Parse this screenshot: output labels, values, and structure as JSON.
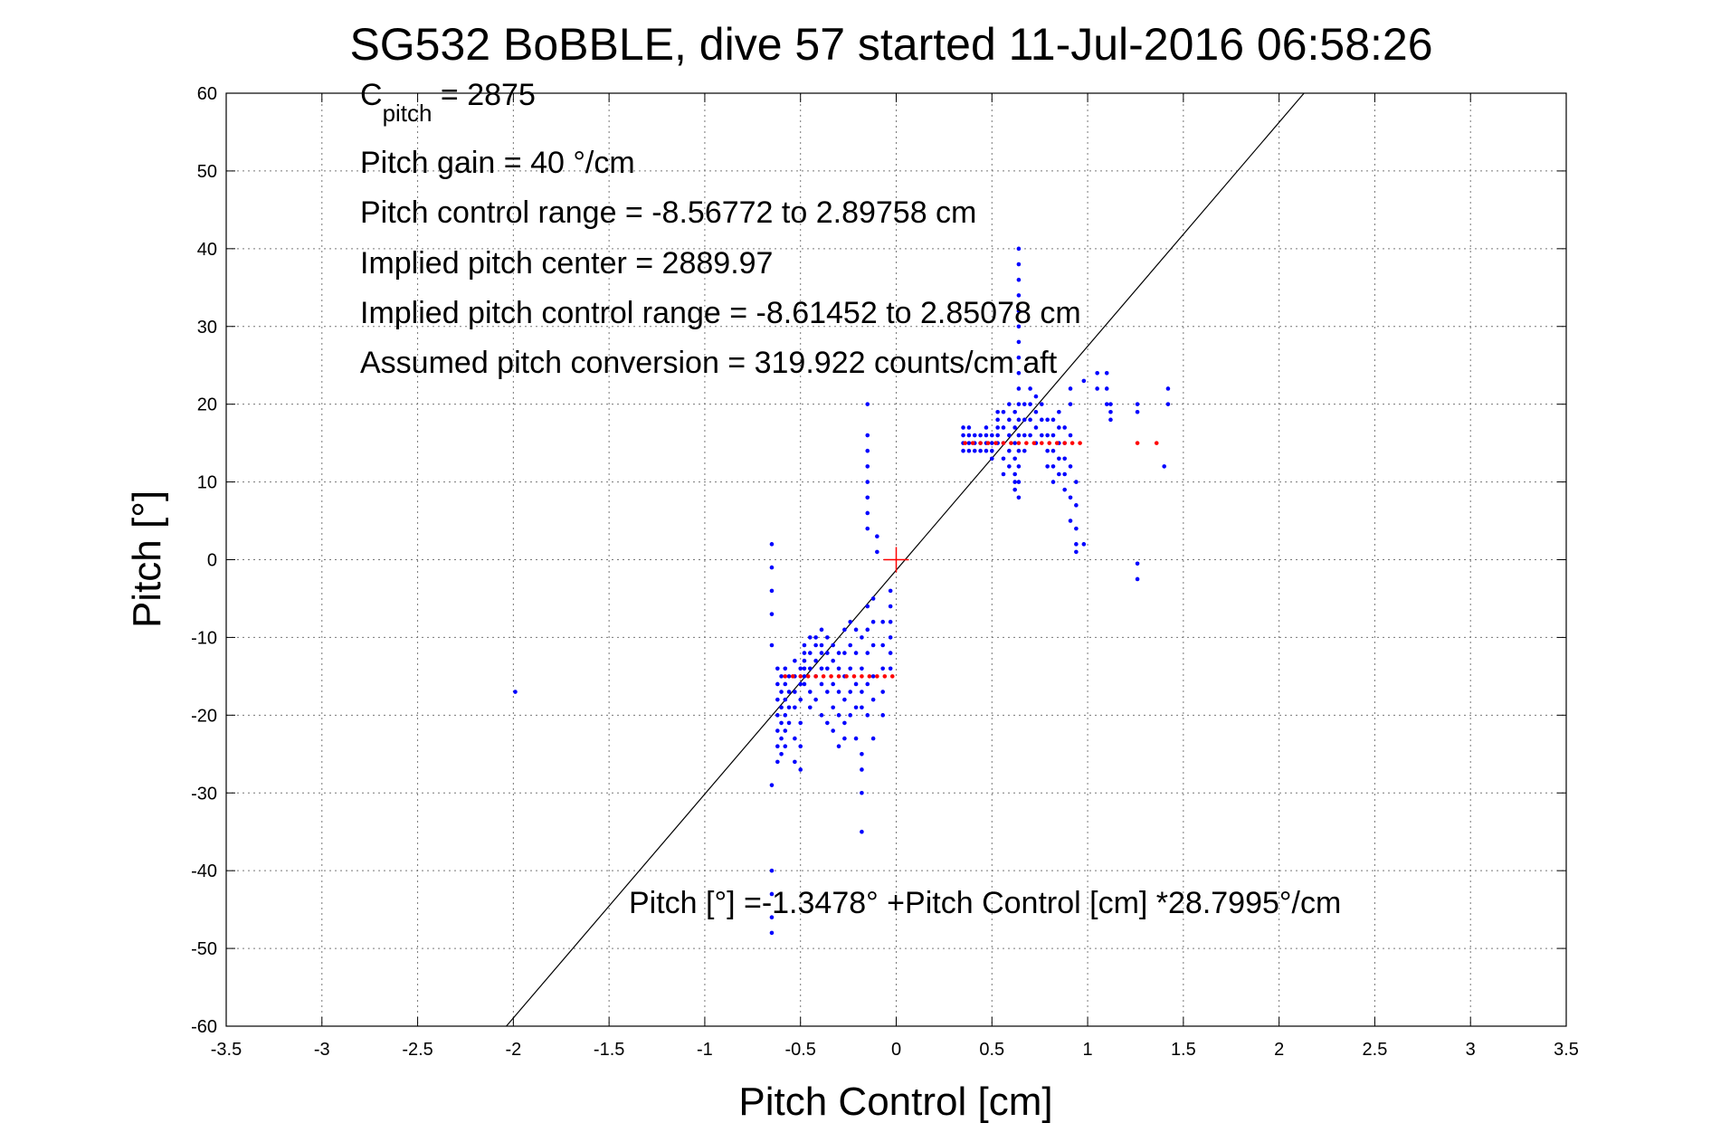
{
  "chart_data": {
    "type": "scatter",
    "title": "SG532 BoBBLE, dive 57 started 11-Jul-2016 06:58:26",
    "xlabel": "Pitch Control [cm]",
    "ylabel": "Pitch [°]",
    "xlim": [
      -3.5,
      3.5
    ],
    "ylim": [
      -60,
      60
    ],
    "xticks": [
      -3.5,
      -3,
      -2.5,
      -2,
      -1.5,
      -1,
      -0.5,
      0,
      0.5,
      1,
      1.5,
      2,
      2.5,
      3,
      3.5
    ],
    "xtick_labels": [
      "-3.5",
      "-3",
      "-2.5",
      "-2",
      "-1.5",
      "-1",
      "-0.5",
      "0",
      "0.5",
      "1",
      "1.5",
      "2",
      "2.5",
      "3",
      "3.5"
    ],
    "yticks": [
      -60,
      -50,
      -40,
      -30,
      -20,
      -10,
      0,
      10,
      20,
      30,
      40,
      50,
      60
    ],
    "ytick_labels": [
      "-60",
      "-50",
      "-40",
      "-30",
      "-20",
      "-10",
      "0",
      "10",
      "20",
      "30",
      "40",
      "50",
      "60"
    ],
    "grid": true,
    "colors": {
      "observed": "#0000ff",
      "target": "#ff0000",
      "fit": "#000000",
      "center": "#ff0000"
    },
    "fit_line": {
      "intercept": -1.3478,
      "slope": 28.7995
    },
    "center_marker": {
      "x": 0,
      "y": 0
    },
    "annotations": {
      "c_pitch_main": "C",
      "c_pitch_sub": "pitch",
      "c_pitch_value": " = 2875",
      "lines": [
        "Pitch gain = 40 °/cm",
        "Pitch control range = -8.56772 to 2.89758 cm",
        "Implied pitch center = 2889.97",
        "Implied pitch control range = -8.61452 to 2.85078 cm",
        "Assumed pitch conversion = 319.922 counts/cm aft"
      ],
      "fit_equation": "Pitch [°] =-1.3478° +Pitch Control [cm] *28.7995°/cm"
    },
    "series": [
      {
        "points": [
          [
            -1.99,
            -17
          ],
          [
            -0.65,
            2
          ],
          [
            -0.65,
            -1
          ],
          [
            -0.65,
            -4
          ],
          [
            -0.65,
            -7
          ],
          [
            -0.65,
            -11
          ],
          [
            -0.65,
            -29
          ],
          [
            -0.65,
            -40
          ],
          [
            -0.65,
            -43
          ],
          [
            -0.65,
            -46
          ],
          [
            -0.65,
            -48
          ],
          [
            -0.62,
            -14
          ],
          [
            -0.62,
            -16
          ],
          [
            -0.62,
            -18
          ],
          [
            -0.62,
            -20
          ],
          [
            -0.62,
            -22
          ],
          [
            -0.62,
            -24
          ],
          [
            -0.62,
            -26
          ],
          [
            -0.6,
            -15
          ],
          [
            -0.6,
            -17
          ],
          [
            -0.6,
            -19
          ],
          [
            -0.6,
            -21
          ],
          [
            -0.6,
            -23
          ],
          [
            -0.6,
            -25
          ],
          [
            -0.58,
            -14
          ],
          [
            -0.58,
            -16
          ],
          [
            -0.58,
            -18
          ],
          [
            -0.58,
            -20
          ],
          [
            -0.58,
            -22
          ],
          [
            -0.58,
            -24
          ],
          [
            -0.56,
            -15
          ],
          [
            -0.56,
            -17
          ],
          [
            -0.56,
            -19
          ],
          [
            -0.56,
            -21
          ],
          [
            -0.53,
            -13
          ],
          [
            -0.53,
            -15
          ],
          [
            -0.53,
            -17
          ],
          [
            -0.53,
            -19
          ],
          [
            -0.53,
            -23
          ],
          [
            -0.53,
            -26
          ],
          [
            -0.5,
            -14
          ],
          [
            -0.5,
            -16
          ],
          [
            -0.5,
            -18
          ],
          [
            -0.5,
            -21
          ],
          [
            -0.5,
            -24
          ],
          [
            -0.5,
            -27
          ],
          [
            -0.48,
            -11
          ],
          [
            -0.48,
            -12
          ],
          [
            -0.48,
            -13
          ],
          [
            -0.48,
            -14
          ],
          [
            -0.48,
            -15
          ],
          [
            -0.48,
            -16
          ],
          [
            -0.45,
            -10
          ],
          [
            -0.45,
            -12
          ],
          [
            -0.45,
            -14
          ],
          [
            -0.45,
            -17
          ],
          [
            -0.45,
            -19
          ],
          [
            -0.42,
            -10
          ],
          [
            -0.42,
            -11
          ],
          [
            -0.42,
            -13
          ],
          [
            -0.42,
            -15
          ],
          [
            -0.42,
            -18
          ],
          [
            -0.39,
            -9
          ],
          [
            -0.39,
            -11
          ],
          [
            -0.39,
            -12
          ],
          [
            -0.39,
            -14
          ],
          [
            -0.39,
            -16
          ],
          [
            -0.39,
            -20
          ],
          [
            -0.36,
            -10
          ],
          [
            -0.36,
            -12
          ],
          [
            -0.36,
            -14
          ],
          [
            -0.36,
            -17
          ],
          [
            -0.36,
            -21
          ],
          [
            -0.33,
            -11
          ],
          [
            -0.33,
            -13
          ],
          [
            -0.33,
            -16
          ],
          [
            -0.33,
            -19
          ],
          [
            -0.33,
            -22
          ],
          [
            -0.3,
            -12
          ],
          [
            -0.3,
            -14
          ],
          [
            -0.3,
            -17
          ],
          [
            -0.3,
            -20
          ],
          [
            -0.3,
            -24
          ],
          [
            -0.27,
            -9
          ],
          [
            -0.27,
            -12
          ],
          [
            -0.27,
            -15
          ],
          [
            -0.27,
            -18
          ],
          [
            -0.27,
            -21
          ],
          [
            -0.27,
            -23
          ],
          [
            -0.24,
            -8
          ],
          [
            -0.24,
            -11
          ],
          [
            -0.24,
            -14
          ],
          [
            -0.24,
            -17
          ],
          [
            -0.24,
            -20
          ],
          [
            -0.21,
            -9
          ],
          [
            -0.21,
            -12
          ],
          [
            -0.21,
            -16
          ],
          [
            -0.21,
            -19
          ],
          [
            -0.21,
            -23
          ],
          [
            -0.18,
            -10
          ],
          [
            -0.18,
            -14
          ],
          [
            -0.18,
            -17
          ],
          [
            -0.18,
            -19
          ],
          [
            -0.18,
            -25
          ],
          [
            -0.18,
            -27
          ],
          [
            -0.18,
            -30
          ],
          [
            -0.18,
            -35
          ],
          [
            -0.15,
            -6
          ],
          [
            -0.15,
            -9
          ],
          [
            -0.15,
            -12
          ],
          [
            -0.15,
            -16
          ],
          [
            -0.15,
            -20
          ],
          [
            -0.15,
            4
          ],
          [
            -0.15,
            6
          ],
          [
            -0.15,
            8
          ],
          [
            -0.15,
            10
          ],
          [
            -0.15,
            12
          ],
          [
            -0.15,
            14
          ],
          [
            -0.15,
            16
          ],
          [
            -0.15,
            20
          ],
          [
            -0.12,
            -5
          ],
          [
            -0.12,
            -8
          ],
          [
            -0.12,
            -11
          ],
          [
            -0.12,
            -15
          ],
          [
            -0.12,
            -18
          ],
          [
            -0.12,
            -23
          ],
          [
            -0.1,
            3
          ],
          [
            -0.1,
            1
          ],
          [
            -0.07,
            -8
          ],
          [
            -0.07,
            -11
          ],
          [
            -0.07,
            -14
          ],
          [
            -0.07,
            -17
          ],
          [
            -0.07,
            -20
          ],
          [
            -0.03,
            -4
          ],
          [
            -0.03,
            -6
          ],
          [
            -0.03,
            -8
          ],
          [
            -0.03,
            -10
          ],
          [
            -0.03,
            -12
          ],
          [
            -0.03,
            -14
          ],
          [
            0.35,
            14
          ],
          [
            0.35,
            15
          ],
          [
            0.35,
            16
          ],
          [
            0.35,
            17
          ],
          [
            0.38,
            14
          ],
          [
            0.38,
            15
          ],
          [
            0.38,
            16
          ],
          [
            0.38,
            17
          ],
          [
            0.41,
            15
          ],
          [
            0.41,
            16
          ],
          [
            0.41,
            14
          ],
          [
            0.44,
            14
          ],
          [
            0.44,
            15
          ],
          [
            0.44,
            16
          ],
          [
            0.47,
            14
          ],
          [
            0.47,
            15
          ],
          [
            0.47,
            16
          ],
          [
            0.47,
            17
          ],
          [
            0.5,
            13
          ],
          [
            0.5,
            14
          ],
          [
            0.5,
            15
          ],
          [
            0.5,
            16
          ],
          [
            0.53,
            15
          ],
          [
            0.53,
            16
          ],
          [
            0.53,
            17
          ],
          [
            0.53,
            18
          ],
          [
            0.53,
            19
          ],
          [
            0.56,
            11
          ],
          [
            0.56,
            13
          ],
          [
            0.56,
            15
          ],
          [
            0.56,
            17
          ],
          [
            0.56,
            19
          ],
          [
            0.59,
            12
          ],
          [
            0.59,
            14
          ],
          [
            0.59,
            16
          ],
          [
            0.59,
            18
          ],
          [
            0.59,
            20
          ],
          [
            0.62,
            9
          ],
          [
            0.62,
            10
          ],
          [
            0.62,
            11
          ],
          [
            0.62,
            13
          ],
          [
            0.62,
            15
          ],
          [
            0.62,
            17
          ],
          [
            0.62,
            19
          ],
          [
            0.64,
            8
          ],
          [
            0.64,
            10
          ],
          [
            0.64,
            12
          ],
          [
            0.64,
            14
          ],
          [
            0.64,
            16
          ],
          [
            0.64,
            18
          ],
          [
            0.64,
            20
          ],
          [
            0.64,
            22
          ],
          [
            0.64,
            24
          ],
          [
            0.64,
            26
          ],
          [
            0.64,
            28
          ],
          [
            0.64,
            30
          ],
          [
            0.64,
            32
          ],
          [
            0.64,
            34
          ],
          [
            0.64,
            36
          ],
          [
            0.64,
            38
          ],
          [
            0.64,
            40
          ],
          [
            0.67,
            14
          ],
          [
            0.67,
            16
          ],
          [
            0.67,
            18
          ],
          [
            0.67,
            20
          ],
          [
            0.7,
            16
          ],
          [
            0.7,
            18
          ],
          [
            0.7,
            20
          ],
          [
            0.7,
            22
          ],
          [
            0.73,
            15
          ],
          [
            0.73,
            17
          ],
          [
            0.73,
            19
          ],
          [
            0.73,
            21
          ],
          [
            0.76,
            16
          ],
          [
            0.76,
            18
          ],
          [
            0.76,
            20
          ],
          [
            0.79,
            12
          ],
          [
            0.79,
            14
          ],
          [
            0.79,
            16
          ],
          [
            0.79,
            18
          ],
          [
            0.82,
            10
          ],
          [
            0.82,
            12
          ],
          [
            0.82,
            14
          ],
          [
            0.82,
            16
          ],
          [
            0.82,
            18
          ],
          [
            0.85,
            11
          ],
          [
            0.85,
            13
          ],
          [
            0.85,
            15
          ],
          [
            0.85,
            17
          ],
          [
            0.85,
            19
          ],
          [
            0.88,
            9
          ],
          [
            0.88,
            11
          ],
          [
            0.88,
            13
          ],
          [
            0.88,
            15
          ],
          [
            0.88,
            17
          ],
          [
            0.91,
            5
          ],
          [
            0.91,
            8
          ],
          [
            0.91,
            12
          ],
          [
            0.91,
            16
          ],
          [
            0.91,
            20
          ],
          [
            0.91,
            22
          ],
          [
            0.94,
            2
          ],
          [
            0.94,
            1
          ],
          [
            0.94,
            4
          ],
          [
            0.94,
            7
          ],
          [
            0.94,
            10
          ],
          [
            0.98,
            2
          ],
          [
            0.98,
            23
          ],
          [
            1.05,
            22
          ],
          [
            1.05,
            24
          ],
          [
            1.1,
            20
          ],
          [
            1.1,
            22
          ],
          [
            1.1,
            24
          ],
          [
            1.12,
            18
          ],
          [
            1.12,
            19
          ],
          [
            1.12,
            20
          ],
          [
            1.26,
            19
          ],
          [
            1.26,
            20
          ],
          [
            1.26,
            -0.5
          ],
          [
            1.26,
            -2.5
          ],
          [
            1.4,
            12
          ],
          [
            1.42,
            20
          ],
          [
            1.42,
            22
          ]
        ]
      },
      {
        "points": [
          [
            -0.58,
            -15
          ],
          [
            -0.54,
            -15
          ],
          [
            -0.5,
            -15
          ],
          [
            -0.46,
            -15
          ],
          [
            -0.42,
            -15
          ],
          [
            -0.38,
            -15
          ],
          [
            -0.34,
            -15
          ],
          [
            -0.3,
            -15
          ],
          [
            -0.26,
            -15
          ],
          [
            -0.22,
            -15
          ],
          [
            -0.18,
            -15
          ],
          [
            -0.14,
            -15
          ],
          [
            -0.1,
            -15
          ],
          [
            -0.06,
            -15
          ],
          [
            -0.02,
            -15
          ],
          [
            0.36,
            15
          ],
          [
            0.4,
            15
          ],
          [
            0.44,
            15
          ],
          [
            0.48,
            15
          ],
          [
            0.52,
            15
          ],
          [
            0.56,
            15
          ],
          [
            0.6,
            15
          ],
          [
            0.64,
            15
          ],
          [
            0.68,
            15
          ],
          [
            0.72,
            15
          ],
          [
            0.76,
            15
          ],
          [
            0.8,
            15
          ],
          [
            0.84,
            15
          ],
          [
            0.88,
            15
          ],
          [
            0.92,
            15
          ],
          [
            0.96,
            15
          ],
          [
            1.26,
            15
          ],
          [
            1.36,
            15
          ]
        ]
      }
    ]
  }
}
